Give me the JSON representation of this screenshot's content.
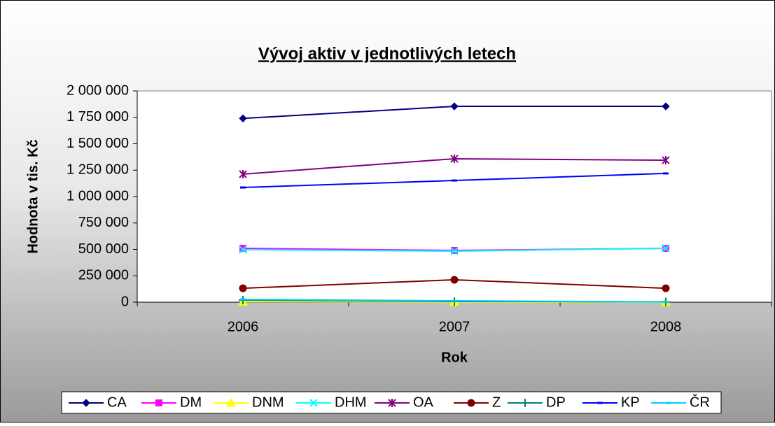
{
  "chart_data": {
    "type": "line",
    "title": "Vývoj aktiv v jednotlivých letech",
    "x_label": "Rok",
    "y_label": "Hodnota v tis. Kč",
    "categories": [
      "2006",
      "2007",
      "2008"
    ],
    "ylim": [
      0,
      2000000
    ],
    "yticks": [
      0,
      {
        "value": 250000,
        "label": "250 000"
      },
      {
        "value": 500000,
        "label": "500 000"
      },
      {
        "value": 750000,
        "label": "750 000"
      },
      {
        "value": 1000000,
        "label": "1 000 000"
      },
      {
        "value": 1250000,
        "label": "1 250 000"
      },
      {
        "value": 1500000,
        "label": "1 500 000"
      },
      {
        "value": 1750000,
        "label": "1 750 000"
      },
      {
        "value": 2000000,
        "label": "2 000 000"
      }
    ],
    "legend": "bottom",
    "series": [
      {
        "name": "CA",
        "color": "#000080",
        "marker": "diamond",
        "values": [
          1740000,
          1854000,
          1854000
        ]
      },
      {
        "name": "DM",
        "color": "#ff00ff",
        "marker": "square",
        "values": [
          510000,
          490000,
          510000
        ]
      },
      {
        "name": "DNM",
        "color": "#ffff00",
        "marker": "triangle",
        "values": [
          5000,
          3000,
          0
        ]
      },
      {
        "name": "DHM",
        "color": "#00ffff",
        "marker": "x",
        "values": [
          497000,
          483000,
          510000
        ]
      },
      {
        "name": "OA",
        "color": "#800080",
        "marker": "star",
        "values": [
          1212000,
          1358000,
          1344000
        ]
      },
      {
        "name": "Z",
        "color": "#800000",
        "marker": "circle",
        "values": [
          132000,
          212000,
          132000
        ]
      },
      {
        "name": "DP",
        "color": "#008080",
        "marker": "plus",
        "values": [
          20000,
          7000,
          3000
        ]
      },
      {
        "name": "KP",
        "color": "#0000ff",
        "marker": "dash",
        "values": [
          1086000,
          1152000,
          1219000
        ]
      },
      {
        "name": "ČR",
        "color": "#00ccff",
        "marker": "dash",
        "values": [
          26000,
          13000,
          2000
        ]
      }
    ]
  }
}
